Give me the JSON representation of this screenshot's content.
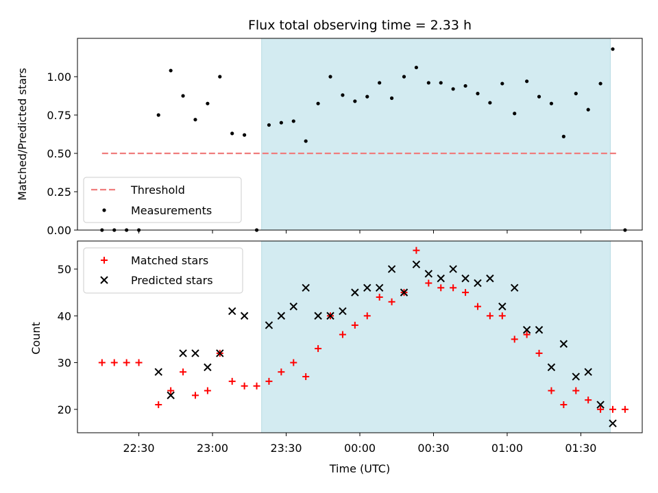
{
  "chart_data": [
    {
      "type": "scatter",
      "title": "Flux total observing time = 2.33 h",
      "xlabel": "",
      "ylabel": "Matched/Predicted stars",
      "ylim": [
        0,
        1.25
      ],
      "yticks": [
        "0.00",
        "0.25",
        "0.50",
        "0.75",
        "1.00"
      ],
      "ytick_values": [
        0,
        0.25,
        0.5,
        0.75,
        1.0
      ],
      "x_time_range": [
        "22:05",
        "01:55"
      ],
      "shaded_interval": [
        "23:20",
        "01:42"
      ],
      "shade_color": "#d3ebf1",
      "legend": {
        "placement": "lower-left",
        "entries": [
          "Threshold",
          "Measurements"
        ]
      },
      "threshold": {
        "name": "Threshold",
        "value": 0.5,
        "x_start": "22:15",
        "x_end": "01:45",
        "color": "#f07c7c",
        "style": "dashed"
      },
      "series": [
        {
          "name": "Measurements",
          "color": "#000000",
          "points": [
            [
              "22:15",
              0.0
            ],
            [
              "22:20",
              0.0
            ],
            [
              "22:25",
              0.0
            ],
            [
              "22:30",
              0.0
            ],
            [
              "22:38",
              0.75
            ],
            [
              "22:43",
              1.04
            ],
            [
              "22:48",
              0.875
            ],
            [
              "22:53",
              0.72
            ],
            [
              "22:58",
              0.825
            ],
            [
              "23:03",
              1.0
            ],
            [
              "23:08",
              0.63
            ],
            [
              "23:13",
              0.62
            ],
            [
              "23:18",
              0.0
            ],
            [
              "23:23",
              0.685
            ],
            [
              "23:28",
              0.7
            ],
            [
              "23:33",
              0.71
            ],
            [
              "23:38",
              0.58
            ],
            [
              "23:43",
              0.825
            ],
            [
              "23:48",
              1.0
            ],
            [
              "23:53",
              0.88
            ],
            [
              "23:58",
              0.84
            ],
            [
              "00:03",
              0.87
            ],
            [
              "00:08",
              0.96
            ],
            [
              "00:13",
              0.86
            ],
            [
              "00:18",
              1.0
            ],
            [
              "00:23",
              1.06
            ],
            [
              "00:28",
              0.96
            ],
            [
              "00:33",
              0.96
            ],
            [
              "00:38",
              0.92
            ],
            [
              "00:43",
              0.94
            ],
            [
              "00:48",
              0.89
            ],
            [
              "00:53",
              0.83
            ],
            [
              "00:58",
              0.955
            ],
            [
              "01:03",
              0.76
            ],
            [
              "01:08",
              0.97
            ],
            [
              "01:13",
              0.87
            ],
            [
              "01:18",
              0.825
            ],
            [
              "01:23",
              0.61
            ],
            [
              "01:28",
              0.89
            ],
            [
              "01:33",
              0.785
            ],
            [
              "01:38",
              0.955
            ],
            [
              "01:43",
              1.18
            ],
            [
              "01:48",
              0.0
            ]
          ]
        }
      ]
    },
    {
      "type": "scatter",
      "title": "",
      "xlabel": "Time (UTC)",
      "ylabel": "Count",
      "ylim": [
        15,
        56
      ],
      "yticks": [
        "20",
        "30",
        "40",
        "50"
      ],
      "ytick_values": [
        20,
        30,
        40,
        50
      ],
      "xticks": [
        "22:30",
        "23:00",
        "23:30",
        "00:00",
        "00:30",
        "01:00",
        "01:30"
      ],
      "xtick_times": [
        "22:30",
        "23:00",
        "23:30",
        "00:00",
        "00:30",
        "01:00",
        "01:30"
      ],
      "x_time_range": [
        "22:05",
        "01:55"
      ],
      "shaded_interval": [
        "23:20",
        "01:42"
      ],
      "shade_color": "#d3ebf1",
      "legend": {
        "placement": "top-left",
        "entries": [
          "Matched stars",
          "Predicted stars"
        ]
      },
      "series": [
        {
          "name": "Matched stars",
          "marker": "plus",
          "color": "#ff0000",
          "points": [
            [
              "22:15",
              30
            ],
            [
              "22:20",
              30
            ],
            [
              "22:25",
              30
            ],
            [
              "22:30",
              30
            ],
            [
              "22:38",
              21
            ],
            [
              "22:43",
              24
            ],
            [
              "22:48",
              28
            ],
            [
              "22:53",
              23
            ],
            [
              "22:58",
              24
            ],
            [
              "23:03",
              32
            ],
            [
              "23:08",
              26
            ],
            [
              "23:13",
              25
            ],
            [
              "23:18",
              25
            ],
            [
              "23:23",
              26
            ],
            [
              "23:28",
              28
            ],
            [
              "23:33",
              30
            ],
            [
              "23:38",
              27
            ],
            [
              "23:43",
              33
            ],
            [
              "23:48",
              40
            ],
            [
              "23:53",
              36
            ],
            [
              "23:58",
              38
            ],
            [
              "00:03",
              40
            ],
            [
              "00:08",
              44
            ],
            [
              "00:13",
              43
            ],
            [
              "00:18",
              45
            ],
            [
              "00:23",
              54
            ],
            [
              "00:28",
              47
            ],
            [
              "00:33",
              46
            ],
            [
              "00:38",
              46
            ],
            [
              "00:43",
              45
            ],
            [
              "00:48",
              42
            ],
            [
              "00:53",
              40
            ],
            [
              "00:58",
              40
            ],
            [
              "01:03",
              35
            ],
            [
              "01:08",
              36
            ],
            [
              "01:13",
              32
            ],
            [
              "01:18",
              24
            ],
            [
              "01:23",
              21
            ],
            [
              "01:28",
              24
            ],
            [
              "01:33",
              22
            ],
            [
              "01:38",
              20
            ],
            [
              "01:43",
              20
            ],
            [
              "01:48",
              20
            ]
          ]
        },
        {
          "name": "Predicted stars",
          "marker": "x",
          "color": "#000000",
          "points": [
            [
              "22:38",
              28
            ],
            [
              "22:43",
              23
            ],
            [
              "22:48",
              32
            ],
            [
              "22:53",
              32
            ],
            [
              "22:58",
              29
            ],
            [
              "23:03",
              32
            ],
            [
              "23:08",
              41
            ],
            [
              "23:13",
              40
            ],
            [
              "23:23",
              38
            ],
            [
              "23:28",
              40
            ],
            [
              "23:33",
              42
            ],
            [
              "23:38",
              46
            ],
            [
              "23:43",
              40
            ],
            [
              "23:48",
              40
            ],
            [
              "23:53",
              41
            ],
            [
              "23:58",
              45
            ],
            [
              "00:03",
              46
            ],
            [
              "00:08",
              46
            ],
            [
              "00:13",
              50
            ],
            [
              "00:18",
              45
            ],
            [
              "00:23",
              51
            ],
            [
              "00:28",
              49
            ],
            [
              "00:33",
              48
            ],
            [
              "00:38",
              50
            ],
            [
              "00:43",
              48
            ],
            [
              "00:48",
              47
            ],
            [
              "00:53",
              48
            ],
            [
              "00:58",
              42
            ],
            [
              "01:03",
              46
            ],
            [
              "01:08",
              37
            ],
            [
              "01:13",
              37
            ],
            [
              "01:18",
              29
            ],
            [
              "01:23",
              34
            ],
            [
              "01:28",
              27
            ],
            [
              "01:33",
              28
            ],
            [
              "01:38",
              21
            ],
            [
              "01:43",
              17
            ]
          ]
        }
      ]
    }
  ]
}
